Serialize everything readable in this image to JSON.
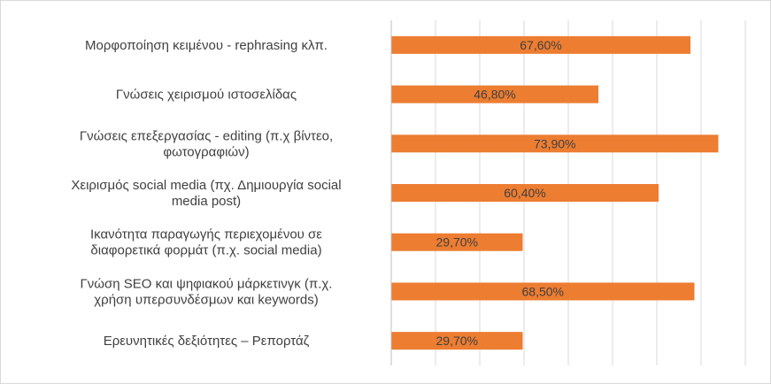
{
  "chart_data": {
    "type": "bar",
    "orientation": "horizontal",
    "categories": [
      [
        "Μορφοποίηση κειμένου - rephrasing κλπ."
      ],
      [
        "Γνώσεις χειρισμού ιστοσελίδας"
      ],
      [
        "Γνώσεις επεξεργασίας - editing (π.χ  βίντεο,",
        "φωτογραφιών)"
      ],
      [
        "Χειρισμός social media (πχ. Δημιουργία social",
        "media post)"
      ],
      [
        "Ικανότητα παραγωγής περιεχομένου σε",
        "διαφορετικά φορμάτ (π.χ. social media)"
      ],
      [
        "Γνώση SEO και ψηφιακού μάρκετινγκ (π.χ.",
        "χρήση υπερσυνδέσμων και keywords)"
      ],
      [
        "Ερευνητικές δεξιότητες – Ρεπορτάζ"
      ]
    ],
    "values": [
      67.6,
      46.8,
      73.9,
      60.4,
      29.7,
      68.5,
      29.7
    ],
    "data_labels": [
      "67,60%",
      "46,80%",
      "73,90%",
      "60,40%",
      "29,70%",
      "68,50%",
      "29,70%"
    ],
    "xlim": [
      0,
      80
    ],
    "grid": true,
    "legend": "none",
    "title": "",
    "xlabel": "",
    "ylabel": "",
    "colors": {
      "bar": "#ED7D31",
      "gridline": "#D9D9D9",
      "axis": "#BFBFBF",
      "label_text": "#404040",
      "frame": "#D9D9D9"
    }
  }
}
